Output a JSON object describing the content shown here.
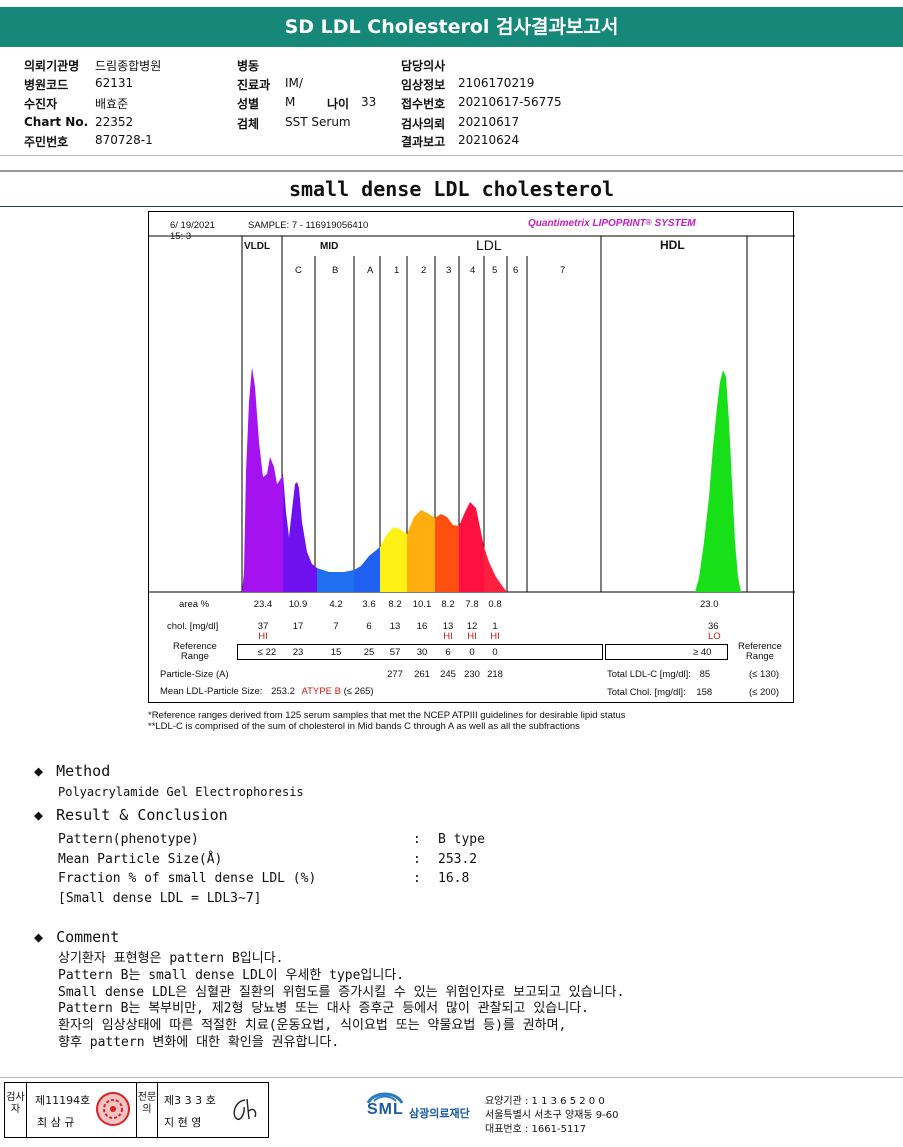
{
  "header": {
    "title": "SD LDL Cholesterol 검사결과보고서"
  },
  "info": {
    "col1": [
      {
        "label": "의뢰기관명",
        "value": "드림종합병원"
      },
      {
        "label": "병원코드",
        "value": "62131"
      },
      {
        "label": "수진자",
        "value": "배효준"
      },
      {
        "label": "Chart No.",
        "value": "22352"
      },
      {
        "label": "주민번호",
        "value": "870728-1"
      }
    ],
    "col2": [
      {
        "label": "병동",
        "value": ""
      },
      {
        "label": "진료과",
        "value": "IM/"
      },
      {
        "label": "성별",
        "value": "M"
      },
      {
        "label": "검체",
        "value": "SST Serum"
      }
    ],
    "age": {
      "label": "나이",
      "value": "33"
    },
    "col3": [
      {
        "label": "담당의사",
        "value": ""
      },
      {
        "label": "임상정보",
        "value": "2106170219"
      },
      {
        "label": "접수번호",
        "value": "20210617-56775"
      },
      {
        "label": "검사의뢰",
        "value": "20210617"
      },
      {
        "label": "결과보고",
        "value": "20210624"
      }
    ]
  },
  "report_title": "small dense LDL cholesterol",
  "chart": {
    "date": "6/ 19/2021",
    "time": "15:  3",
    "sample": "SAMPLE:    7 - 116919056410",
    "brand": "Quantimetrix LIPOPRINT",
    "brand_mark": "®",
    "brand_suffix": "SYSTEM",
    "groups": {
      "vldl": "VLDL",
      "mid": "MID",
      "ldl": "LDL",
      "hdl": "HDL"
    },
    "bands": [
      "C",
      "B",
      "A",
      "1",
      "2",
      "3",
      "4",
      "5",
      "6",
      "7"
    ],
    "row_labels": {
      "area": "area %",
      "chol": "chol. [mg/dl]",
      "reference": [
        "Reference",
        "Range"
      ],
      "particle": "Particle-Size (A)",
      "mean": "Mean LDL-Particle Size:"
    },
    "area": [
      "23.4",
      "10.9",
      "4.2",
      "3.6",
      "8.2",
      "10.1",
      "8.2",
      "7.8",
      "0.8"
    ],
    "chol": [
      "37",
      "17",
      "7",
      "6",
      "13",
      "16",
      "13",
      "12",
      "1"
    ],
    "chol_flags": [
      "HI",
      "",
      "",
      "",
      "",
      "",
      "HI",
      "HI",
      "HI"
    ],
    "reference": [
      "≤ 22",
      "23",
      "15",
      "25",
      "57",
      "30",
      "6",
      "0",
      "0"
    ],
    "particle": [
      "277",
      "261",
      "245",
      "230",
      "218"
    ],
    "mean_value": "253.2",
    "mean_type": "ATYPE B",
    "mean_limit": "(≤ 265)",
    "hdl_area": "23.0",
    "hdl_chol": "36",
    "hdl_flag": "LO",
    "hdl_reference": "≥  40",
    "hdl_reference_label": [
      "Reference",
      "Range"
    ],
    "total_ldl": {
      "label": "Total LDL-C [mg/dl]:",
      "value": "85",
      "limit": "(≤ 130)"
    },
    "total_chol": {
      "label": "Total Chol. [mg/dl]:",
      "value": "158",
      "limit": "(≤ 200)"
    }
  },
  "chart_data": {
    "type": "area",
    "title": "small dense LDL cholesterol",
    "fractions": [
      "VLDL",
      "MID C",
      "MID B",
      "MID A",
      "LDL1",
      "LDL2",
      "LDL3",
      "LDL4",
      "LDL5",
      "LDL6",
      "LDL7",
      "HDL"
    ],
    "area_percent": [
      23.4,
      10.9,
      4.2,
      3.6,
      8.2,
      10.1,
      8.2,
      7.8,
      0.8,
      null,
      null,
      23.0
    ],
    "chol_mg_dl": [
      37,
      17,
      7,
      6,
      13,
      16,
      13,
      12,
      1,
      null,
      null,
      36
    ],
    "flags": [
      "HI",
      "",
      "",
      "",
      "",
      "",
      "HI",
      "HI",
      "HI",
      "",
      "",
      "LO"
    ],
    "reference_range": [
      "≤ 22",
      "23",
      "15",
      "25",
      "57",
      "30",
      "6",
      "0",
      "0",
      "",
      "",
      "≥ 40"
    ],
    "particle_size_A": {
      "LDL1": 277,
      "LDL2": 261,
      "LDL3": 245,
      "LDL4": 230,
      "LDL5": 218
    },
    "mean_ldl_particle_size": 253.2,
    "colors": {
      "vldl": "#a412ef",
      "mid_c": "#6f10ee",
      "mid_b": "#1f70f0",
      "mid_a": "#2060f0",
      "ldl1": "#fff015",
      "ldl2": "#ffae10",
      "ldl3": "#ff5010",
      "ldl4": "#ff1040",
      "ldl5": "#ff2040",
      "hdl": "#18e018"
    }
  },
  "notes": [
    "*Reference ranges derived from 125 serum samples that met the NCEP ATPIII guidelines for desirable lipid status",
    "**LDL-C is comprised of the sum of cholesterol in Mid bands C through A as well as all the subfractions"
  ],
  "method": {
    "heading": "Method",
    "text": "Polyacrylamide Gel Electrophoresis"
  },
  "result": {
    "heading": "Result & Conclusion",
    "rows": [
      {
        "label": "Pattern(phenotype)",
        "value": "B type"
      },
      {
        "label": "Mean Particle Size(Å)",
        "value": "253.2"
      },
      {
        "label": "Fraction % of small dense LDL (%)",
        "value": "16.8"
      }
    ],
    "note": "[Small dense LDL = LDL3~7]"
  },
  "comment": {
    "heading": "Comment",
    "lines": [
      "상기환자 표현형은 pattern B입니다.",
      "Pattern B는 small dense LDL이 우세한 type입니다.",
      "Small dense LDL은 심혈관 질환의 위험도를 증가시킬 수 있는 위험인자로 보고되고 있습니다.",
      "Pattern B는 복부비만, 제2형 당뇨병 또는 대사 증후군 등에서 많이 관찰되고 있습니다.",
      "환자의 임상상태에 따른 적절한 치료(운동요법, 식이요법 또는 약물요법 등)를 권하며,",
      "향후 pattern 변화에 대한 확인을 권유합니다."
    ]
  },
  "footer": {
    "examiner_label": "검사자",
    "examiner_no": "제11194호",
    "examiner_name": "최 삼 규",
    "specialist_label": "전문의",
    "specialist_no": "제3 3 3 호",
    "specialist_name": "지 현 영",
    "org_logo": "SML",
    "org_name": "삼광의료재단",
    "org_lines": [
      "요양기관 : 1 1 3 6 5 2 0 0",
      "서울특별시 서초구 양재동 9-60",
      "대표번호 : 1661-5117"
    ]
  }
}
